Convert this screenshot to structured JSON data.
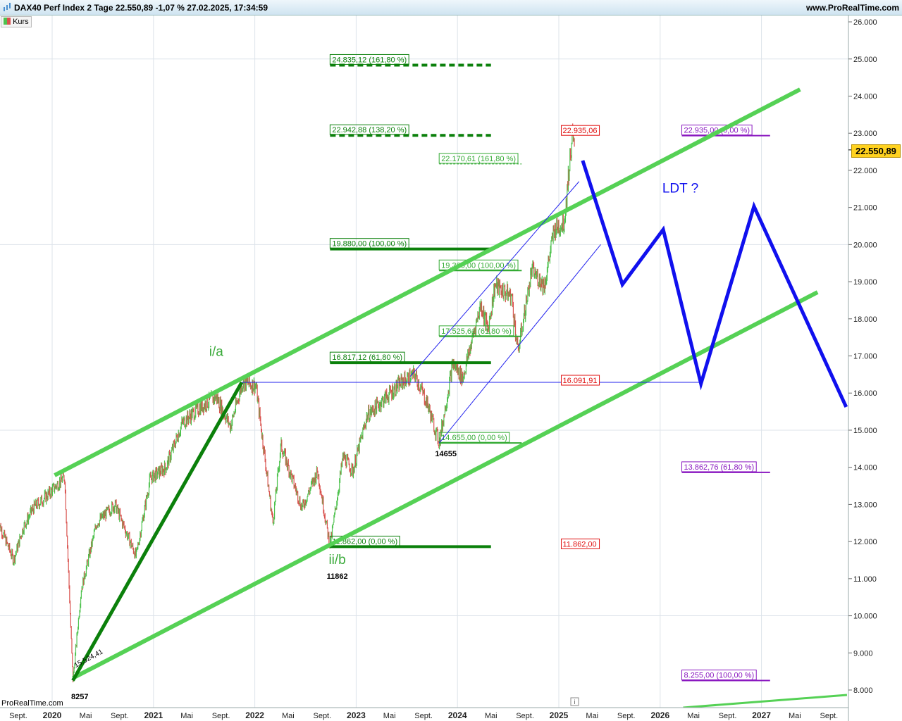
{
  "header": {
    "title": "DAX40 Perf Index 2 Tage 22.550,89 -1,07 % 27.02.2025, 17:34:59",
    "site": "www.ProRealTime.com"
  },
  "legend": {
    "label": "Kurs"
  },
  "watermark": "ProRealTime.com",
  "chart_data": {
    "type": "candlestick",
    "ylim": [
      7500,
      26300
    ],
    "y_ticks": [
      {
        "v": 8000,
        "l": "8.000"
      },
      {
        "v": 9000,
        "l": "9.000"
      },
      {
        "v": 10000,
        "l": "10.000"
      },
      {
        "v": 11000,
        "l": "11.000"
      },
      {
        "v": 12000,
        "l": "12.000"
      },
      {
        "v": 13000,
        "l": "13.000"
      },
      {
        "v": 14000,
        "l": "14.000"
      },
      {
        "v": 15000,
        "l": "15.000"
      },
      {
        "v": 16000,
        "l": "16.000"
      },
      {
        "v": 17000,
        "l": "17.000"
      },
      {
        "v": 18000,
        "l": "18.000"
      },
      {
        "v": 19000,
        "l": "19.000"
      },
      {
        "v": 20000,
        "l": "20.000"
      },
      {
        "v": 21000,
        "l": "21.000"
      },
      {
        "v": 22000,
        "l": "22.000"
      },
      {
        "v": 23000,
        "l": "23.000"
      },
      {
        "v": 24000,
        "l": "24.000"
      },
      {
        "v": 25000,
        "l": "25.000"
      },
      {
        "v": 26000,
        "l": "26.000"
      }
    ],
    "x_ticks": [
      {
        "d": "2019-09-01",
        "l": "Sept."
      },
      {
        "d": "2020-01-01",
        "l": "2020",
        "major": true
      },
      {
        "d": "2020-05-01",
        "l": "Mai"
      },
      {
        "d": "2020-09-01",
        "l": "Sept."
      },
      {
        "d": "2021-01-01",
        "l": "2021",
        "major": true
      },
      {
        "d": "2021-05-01",
        "l": "Mai"
      },
      {
        "d": "2021-09-01",
        "l": "Sept."
      },
      {
        "d": "2022-01-01",
        "l": "2022",
        "major": true
      },
      {
        "d": "2022-05-01",
        "l": "Mai"
      },
      {
        "d": "2022-09-01",
        "l": "Sept."
      },
      {
        "d": "2023-01-01",
        "l": "2023",
        "major": true
      },
      {
        "d": "2023-05-01",
        "l": "Mai"
      },
      {
        "d": "2023-09-01",
        "l": "Sept."
      },
      {
        "d": "2024-01-01",
        "l": "2024",
        "major": true
      },
      {
        "d": "2024-05-01",
        "l": "Mai"
      },
      {
        "d": "2024-09-01",
        "l": "Sept."
      },
      {
        "d": "2025-01-01",
        "l": "2025",
        "major": true
      },
      {
        "d": "2025-05-01",
        "l": "Mai"
      },
      {
        "d": "2025-09-01",
        "l": "Sept."
      },
      {
        "d": "2026-01-01",
        "l": "2026",
        "major": true
      },
      {
        "d": "2026-05-01",
        "l": "Mai"
      },
      {
        "d": "2026-09-01",
        "l": "Sept."
      },
      {
        "d": "2027-01-01",
        "l": "2027",
        "major": true
      },
      {
        "d": "2027-05-01",
        "l": "Mai"
      },
      {
        "d": "2027-09-01",
        "l": "Sept."
      }
    ],
    "current_price": {
      "value": 22550.89,
      "label": "22.550,89"
    },
    "price_path": [
      [
        "2019-06-20",
        12550
      ],
      [
        "2019-08-15",
        11500
      ],
      [
        "2019-09-20",
        12400
      ],
      [
        "2019-10-25",
        12900
      ],
      [
        "2019-12-15",
        13250
      ],
      [
        "2020-02-15",
        13750
      ],
      [
        "2020-03-16",
        8257
      ],
      [
        "2020-04-15",
        10700
      ],
      [
        "2020-06-10",
        12500
      ],
      [
        "2020-08-15",
        13000
      ],
      [
        "2020-10-30",
        11600
      ],
      [
        "2020-12-20",
        13700
      ],
      [
        "2021-02-15",
        14000
      ],
      [
        "2021-04-15",
        15200
      ],
      [
        "2021-06-15",
        15600
      ],
      [
        "2021-08-15",
        15900
      ],
      [
        "2021-10-05",
        15100
      ],
      [
        "2021-11-18",
        16290
      ],
      [
        "2022-01-05",
        16200
      ],
      [
        "2022-03-07",
        12500
      ],
      [
        "2022-04-05",
        14600
      ],
      [
        "2022-06-20",
        12900
      ],
      [
        "2022-08-15",
        13900
      ],
      [
        "2022-09-29",
        11862
      ],
      [
        "2022-11-15",
        14300
      ],
      [
        "2022-12-20",
        13900
      ],
      [
        "2023-02-10",
        15400
      ],
      [
        "2023-04-20",
        15900
      ],
      [
        "2023-06-15",
        16300
      ],
      [
        "2023-07-31",
        16500
      ],
      [
        "2023-09-15",
        15700
      ],
      [
        "2023-10-27",
        14655
      ],
      [
        "2023-12-15",
        16800
      ],
      [
        "2024-01-20",
        16400
      ],
      [
        "2024-03-25",
        18400
      ],
      [
        "2024-04-20",
        17700
      ],
      [
        "2024-05-15",
        18900
      ],
      [
        "2024-07-15",
        18600
      ],
      [
        "2024-08-06",
        17100
      ],
      [
        "2024-09-25",
        19300
      ],
      [
        "2024-11-10",
        18900
      ],
      [
        "2024-12-15",
        20400
      ],
      [
        "2025-01-20",
        20600
      ],
      [
        "2025-02-18",
        22935
      ],
      [
        "2025-02-27",
        22551
      ]
    ],
    "trendlines": [
      {
        "name": "channel-upper",
        "color": "#55d155",
        "w": 6,
        "p": [
          [
            "2020-01-10",
            13785
          ],
          [
            "2027-05-20",
            24180
          ]
        ]
      },
      {
        "name": "channel-lower",
        "color": "#55d155",
        "w": 6,
        "p": [
          [
            "2020-03-16",
            8322
          ],
          [
            "2027-07-22",
            18717
          ]
        ]
      },
      {
        "name": "lower-right-line",
        "color": "#55d155",
        "w": 3,
        "p": [
          [
            "2026-03-25",
            7526
          ],
          [
            "2027-11-05",
            7867
          ]
        ]
      },
      {
        "name": "impulse-i-a",
        "color": "#0b800b",
        "w": 5,
        "p": [
          [
            "2020-03-16",
            8257
          ],
          [
            "2021-11-15",
            16290
          ]
        ]
      },
      {
        "name": "blue-channel-upper",
        "color": "#2020ee",
        "w": 1,
        "p": [
          [
            "2023-07-15",
            16450
          ],
          [
            "2025-03-15",
            21700
          ]
        ]
      },
      {
        "name": "blue-channel-lower",
        "color": "#2020ee",
        "w": 1,
        "p": [
          [
            "2023-10-27",
            14655
          ],
          [
            "2025-06-01",
            20000
          ]
        ]
      },
      {
        "name": "horizontal-16291",
        "color": "#2020ee",
        "w": 1,
        "p": [
          [
            "2021-11-15",
            16290
          ],
          [
            "2026-05-25",
            16290
          ]
        ]
      },
      {
        "name": "projection",
        "color": "#1010ee",
        "w": 5,
        "p": [
          [
            "2025-03-28",
            22264
          ],
          [
            "2025-08-18",
            18925
          ],
          [
            "2026-01-12",
            20405
          ],
          [
            "2026-05-28",
            16251
          ],
          [
            "2026-12-05",
            21030
          ],
          [
            "2027-11-02",
            15625
          ]
        ]
      }
    ],
    "levels": [
      {
        "label": "24.835,12 (161,80 %)",
        "v": 24835.12,
        "from": "2022-09-29",
        "to": "2024-05-01",
        "style": "dashed",
        "color": "#0b800b",
        "w": 4
      },
      {
        "label": "22.942,88 (138,20 %)",
        "v": 22942.88,
        "from": "2022-09-29",
        "to": "2024-05-01",
        "style": "dashed",
        "color": "#0b800b",
        "w": 4
      },
      {
        "label": "19.880,00 (100,00 %)",
        "v": 19880,
        "from": "2022-09-29",
        "to": "2024-05-01",
        "style": "solid",
        "color": "#0b800b",
        "w": 4
      },
      {
        "label": "16.817,12 (61,80 %)",
        "v": 16817.12,
        "from": "2022-09-29",
        "to": "2024-05-01",
        "style": "solid",
        "color": "#0b800b",
        "w": 4
      },
      {
        "label": "11.862,00 (0,00 %)",
        "v": 11862,
        "from": "2022-09-29",
        "to": "2024-05-01",
        "style": "solid",
        "color": "#0b800b",
        "w": 4
      },
      {
        "label": "22.170,61 (161,80 %)",
        "v": 22170.61,
        "from": "2023-10-27",
        "to": "2024-08-20",
        "style": "thin-dashed",
        "color": "#33aa33",
        "w": 1
      },
      {
        "label": "19.300,00 (100,00 %)",
        "v": 19300,
        "from": "2023-10-27",
        "to": "2024-08-20",
        "style": "solid",
        "color": "#33aa33",
        "w": 2
      },
      {
        "label": "17.525,61 (61,80 %)",
        "v": 17525.61,
        "from": "2023-10-27",
        "to": "2024-08-20",
        "style": "solid",
        "color": "#33aa33",
        "w": 2
      },
      {
        "label": "14.655,00 (0,00 %)",
        "v": 14655,
        "from": "2023-10-27",
        "to": "2024-08-20",
        "style": "solid",
        "color": "#33aa33",
        "w": 2
      },
      {
        "label": "22.935,00 (0,00 %)",
        "v": 22935,
        "from": "2026-03-20",
        "to": "2027-02-01",
        "style": "solid",
        "color": "#8a18c0",
        "w": 2
      },
      {
        "label": "13.862,76 (61,80 %)",
        "v": 13862.76,
        "from": "2026-03-20",
        "to": "2027-02-01",
        "style": "solid",
        "color": "#8a18c0",
        "w": 2
      },
      {
        "label": "8.255,00 (100,00 %)",
        "v": 8255,
        "from": "2026-03-20",
        "to": "2027-02-01",
        "style": "solid",
        "color": "#8a18c0",
        "w": 2
      }
    ],
    "red_labels": [
      {
        "label": "22.935,06",
        "d": "2025-01-10",
        "v": 23000
      },
      {
        "label": "16.091,91",
        "d": "2025-01-10",
        "v": 16270
      },
      {
        "label": "11.862,00",
        "d": "2025-01-10",
        "v": 11862
      }
    ],
    "annotations": [
      {
        "text": "i/a",
        "d": "2021-08-15",
        "v": 17000,
        "color": "#3aaa3a",
        "size": 19
      },
      {
        "text": "ii/b",
        "d": "2022-10-25",
        "v": 11400,
        "color": "#3aaa3a",
        "size": 19
      },
      {
        "text": "LDT ?",
        "d": "2026-03-15",
        "v": 21400,
        "color": "#1010ee",
        "size": 19
      },
      {
        "text": "8257",
        "d": "2020-04-10",
        "v": 7750,
        "color": "#000",
        "size": 11,
        "bold": true
      },
      {
        "text": "11862",
        "d": "2022-10-25",
        "v": 11000,
        "color": "#000",
        "size": 11,
        "bold": true
      },
      {
        "text": "14655",
        "d": "2023-11-20",
        "v": 14300,
        "color": "#000",
        "size": 11,
        "bold": true
      },
      {
        "text": "15.524,41",
        "d": "2020-05-15",
        "v": 8800,
        "color": "#000",
        "size": 10,
        "rotate": -28
      }
    ]
  },
  "colors": {
    "up": "#4ec24e",
    "down": "#d9534f",
    "grid": "#dde3ea"
  }
}
